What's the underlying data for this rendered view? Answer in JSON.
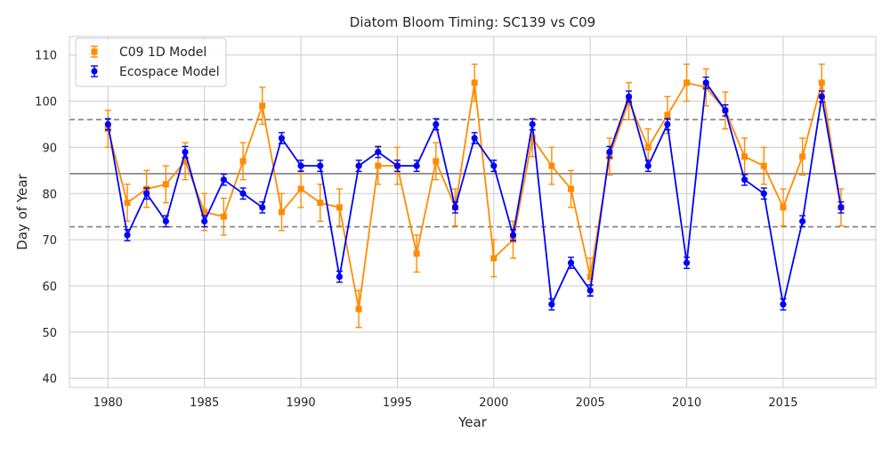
{
  "chart_data": {
    "type": "line",
    "title": "Diatom Bloom Timing: SC139 vs C09",
    "xlabel": "Year",
    "ylabel": "Day of Year",
    "xlim": [
      1978,
      2019.8
    ],
    "ylim": [
      38,
      114
    ],
    "xticks": [
      1980,
      1985,
      1990,
      1995,
      2000,
      2005,
      2010,
      2015
    ],
    "yticks": [
      40,
      50,
      60,
      70,
      80,
      90,
      100,
      110
    ],
    "grid": true,
    "legend_position": "top-left",
    "x": [
      1980,
      1981,
      1982,
      1983,
      1984,
      1985,
      1986,
      1987,
      1988,
      1989,
      1990,
      1991,
      1992,
      1993,
      1994,
      1995,
      1996,
      1997,
      1998,
      1999,
      2000,
      2001,
      2002,
      2003,
      2004,
      2005,
      2006,
      2007,
      2008,
      2009,
      2010,
      2011,
      2012,
      2013,
      2014,
      2015,
      2016,
      2017,
      2018
    ],
    "series": [
      {
        "name": "C09 1D Model",
        "color": "#ff8c00",
        "marker": "square",
        "values": [
          94,
          78,
          81,
          82,
          87,
          76,
          75,
          87,
          99,
          76,
          81,
          78,
          77,
          55,
          86,
          86,
          67,
          87,
          77,
          104,
          66,
          70,
          92,
          86,
          81,
          62,
          88,
          100,
          90,
          97,
          104,
          103,
          98,
          88,
          86,
          77,
          88,
          104,
          77
        ],
        "error": 4
      },
      {
        "name": "Ecospace Model",
        "color": "#0000ff",
        "marker": "circle",
        "values": [
          95,
          71,
          80,
          74,
          89,
          74,
          83,
          80,
          77,
          92,
          86,
          86,
          62,
          86,
          89,
          86,
          86,
          95,
          77,
          92,
          86,
          71,
          95,
          56,
          65,
          59,
          89,
          101,
          86,
          95,
          65,
          104,
          98,
          83,
          80,
          56,
          74,
          101,
          77
        ],
        "error": 1.2
      }
    ],
    "reference_lines": [
      {
        "y": 84.3,
        "style": "solid",
        "color": "#808080"
      },
      {
        "y": 96.0,
        "style": "dashed",
        "color": "#808080"
      },
      {
        "y": 72.8,
        "style": "dashed",
        "color": "#808080"
      }
    ]
  }
}
